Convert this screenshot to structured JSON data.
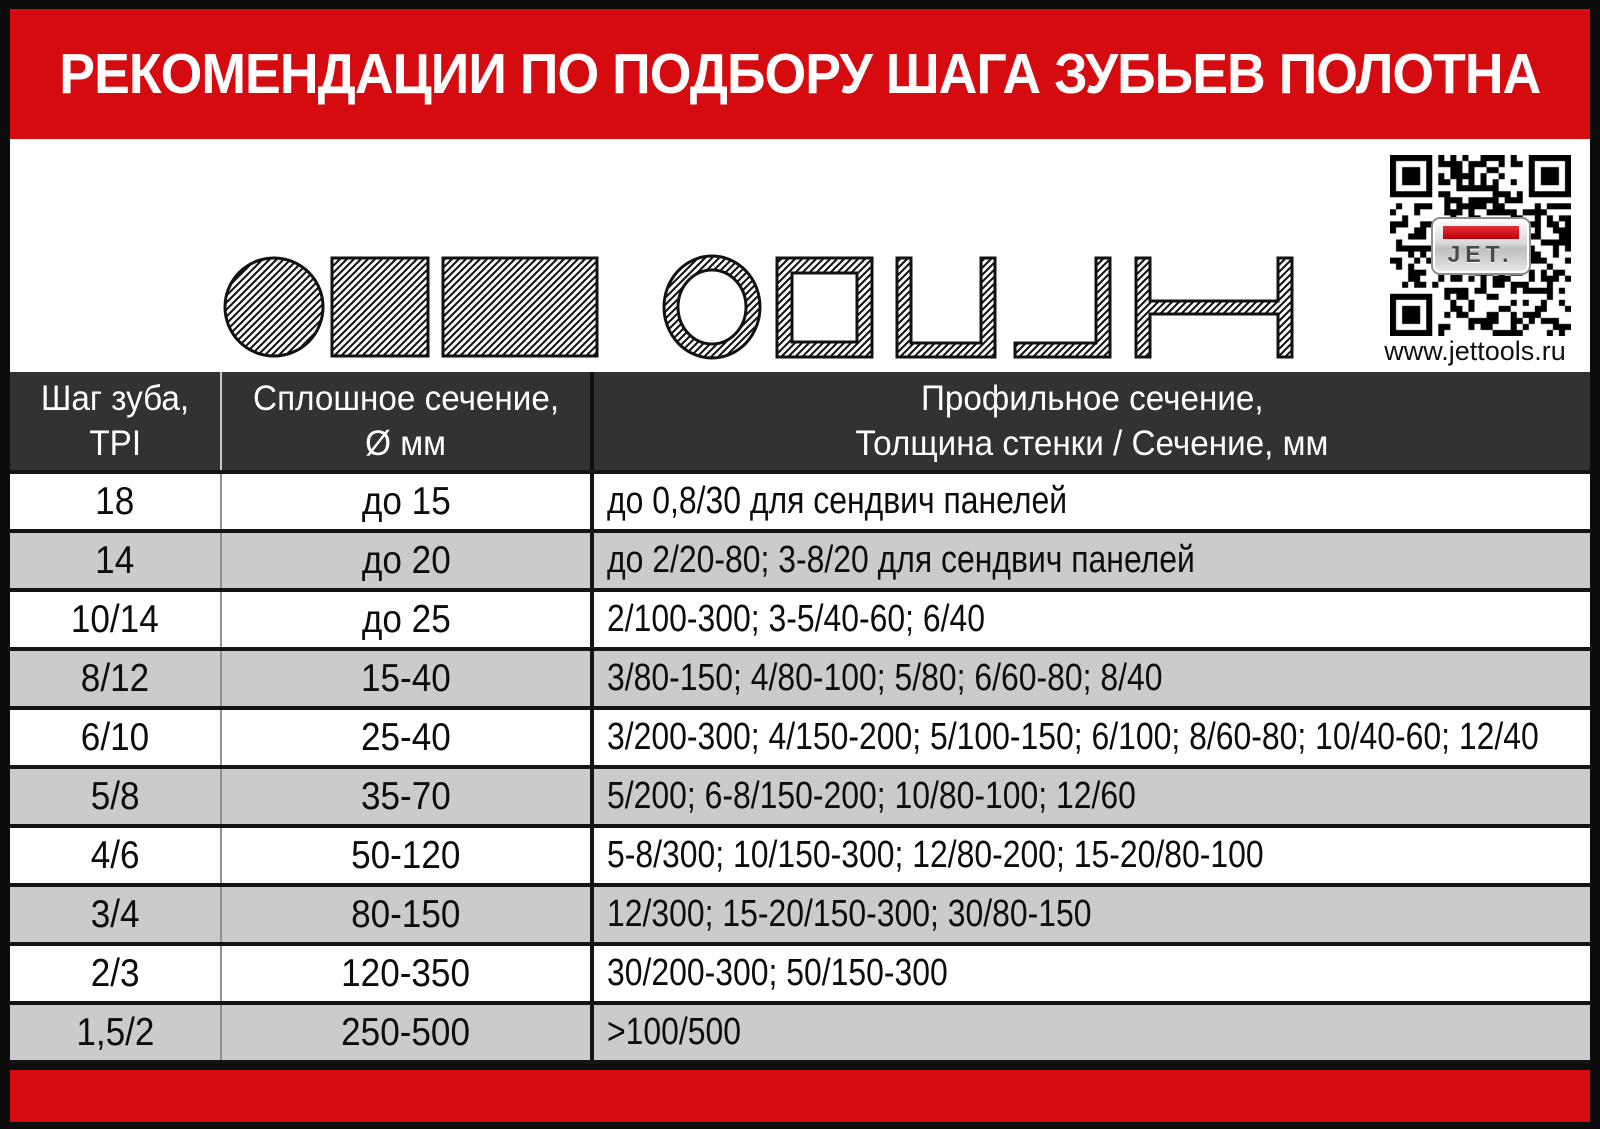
{
  "title": "РЕКОМЕНДАЦИИ ПО ПОДБОРУ ШАГА ЗУБЬЕВ ПОЛОТНА",
  "colors": {
    "accent_red": "#d60b10",
    "header_bg": "#323232",
    "row_alt_gray": "#cbcbcb",
    "frame_black": "#0c0c0c"
  },
  "branding": {
    "logo_text": "JET.",
    "website": "www.jettools.ru",
    "qr_icon": "qr-code"
  },
  "illustration": {
    "solid_shapes": [
      "hatched-circle",
      "hatched-square",
      "hatched-rectangle"
    ],
    "profile_shapes": [
      "pipe-ring",
      "square-tube",
      "u-channel",
      "angle",
      "i-beam"
    ]
  },
  "table": {
    "header": {
      "col1_line1": "Шаг зуба,",
      "col1_line2": "TPI",
      "col2_line1": "Сплошное сечение,",
      "col2_line2": "Ø мм",
      "col3_line1": "Профильное сечение,",
      "col3_line2": "Толщина стенки / Сечение, мм"
    },
    "rows": [
      {
        "tpi": "18",
        "solid": "до 15",
        "profile": "до 0,8/30 для сендвич панелей"
      },
      {
        "tpi": "14",
        "solid": "до 20",
        "profile": "до 2/20-80; 3-8/20 для сендвич панелей"
      },
      {
        "tpi": "10/14",
        "solid": "до 25",
        "profile": "2/100-300; 3-5/40-60;  6/40"
      },
      {
        "tpi": "8/12",
        "solid": "15-40",
        "profile": "3/80-150; 4/80-100; 5/80; 6/60-80; 8/40"
      },
      {
        "tpi": "6/10",
        "solid": "25-40",
        "profile": "3/200-300; 4/150-200; 5/100-150; 6/100; 8/60-80; 10/40-60; 12/40"
      },
      {
        "tpi": "5/8",
        "solid": "35-70",
        "profile": "5/200; 6-8/150-200; 10/80-100; 12/60"
      },
      {
        "tpi": "4/6",
        "solid": "50-120",
        "profile": "5-8/300; 10/150-300; 12/80-200; 15-20/80-100"
      },
      {
        "tpi": "3/4",
        "solid": "80-150",
        "profile": "12/300; 15-20/150-300; 30/80-150"
      },
      {
        "tpi": "2/3",
        "solid": "120-350",
        "profile": "30/200-300; 50/150-300"
      },
      {
        "tpi": "1,5/2",
        "solid": "250-500",
        "profile": ">100/500"
      }
    ]
  }
}
